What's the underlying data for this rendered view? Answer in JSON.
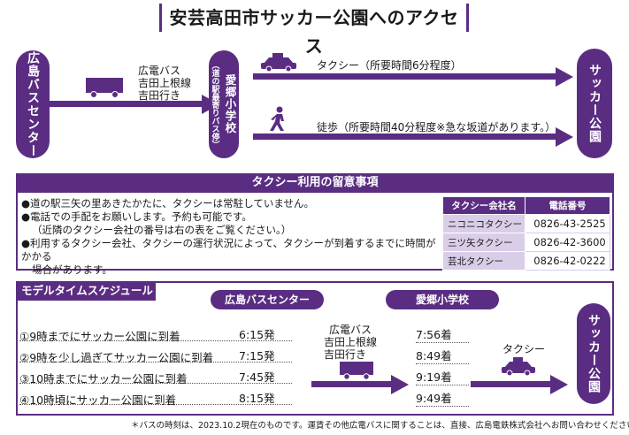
{
  "title": "安芸高田市サッカー公園へのアクセス",
  "route": {
    "start": "広島バスセンター",
    "bus": {
      "line1": "広電バス",
      "line2": "吉田上根線",
      "line3": "吉田行き"
    },
    "mid_main": "愛郷小学校",
    "mid_sub": "（道の駅最寄りバス停）",
    "taxi": "タクシー（所要時間6分程度）",
    "walk": "徒歩（所要時間40分程度※急な坂道があります。）",
    "taxi_icon_label": "TAXI",
    "end": "サッカー公園"
  },
  "notice": {
    "header": "タクシー利用の留意事項",
    "items": [
      "●道の駅三矢の里あきたかたに、タクシーは常駐していません。",
      "●電話での手配をお願いします。予約も可能です。",
      "（近隣のタクシー会社の番号は右の表をご覧ください。）",
      "●利用するタクシー会社、タクシーの運行状況によって、タクシーが到着するまでに時間がかかる",
      "場合があります。"
    ],
    "table": {
      "col1": "タクシー会社名",
      "col2": "電話番号",
      "rows": [
        {
          "name": "ニコニコタクシー",
          "phone": "0826-43-2525"
        },
        {
          "name": "三ツ矢タクシー",
          "phone": "0826-42-3600"
        },
        {
          "name": "芸北タクシー",
          "phone": "0826-42-0222"
        }
      ]
    }
  },
  "schedule": {
    "header": "モデルタイムスケジュール",
    "col_depart": "広島バスセンター",
    "col_arrive": "愛郷小学校",
    "bus": {
      "line1": "広電バス",
      "line2": "吉田上根線",
      "line3": "吉田行き"
    },
    "taxi": "タクシー",
    "end": "サッカー公園",
    "rows": [
      {
        "label": "①9時までにサッカー公園に到着",
        "depart": "6:15発",
        "arrive": "7:56着"
      },
      {
        "label": "②9時を少し過ぎてサッカー公園に到着",
        "depart": "7:15発",
        "arrive": "8:49着"
      },
      {
        "label": "③10時までにサッカー公園に到着",
        "depart": "7:45発",
        "arrive": "9:19着"
      },
      {
        "label": "④10時頃にサッカー公園に到着",
        "depart": "8:15発",
        "arrive": "9:49着"
      }
    ]
  },
  "footnote": "＊バスの時刻は、2023.10.2現在のものです。運賃その他広電バスに関することは、直接、広島電鉄株式会社へお問い合わせください。",
  "colors": {
    "accent": "#5a2d82",
    "light": "#d9cde8"
  }
}
